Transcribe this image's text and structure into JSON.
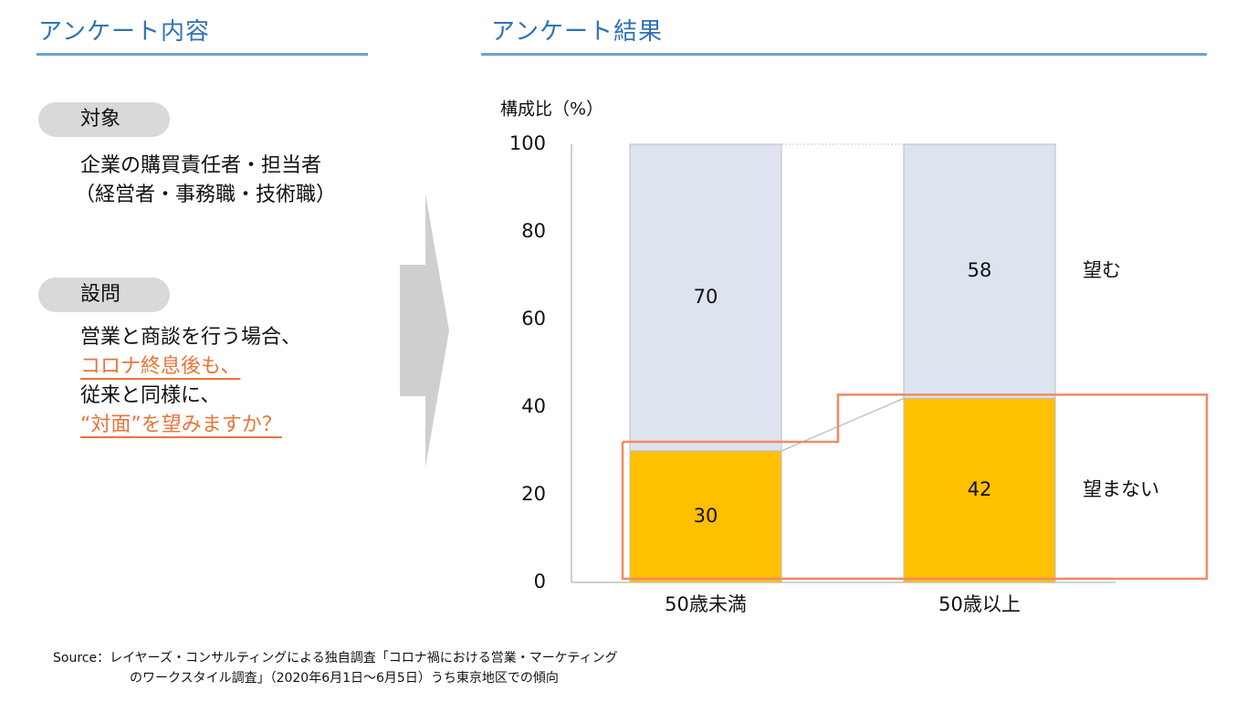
{
  "left_panel": {
    "title": "アンケート内容",
    "subject": {
      "label": "対象",
      "lines": [
        "企業の購買責任者・担当者",
        "（経営者・事務職・技術職）"
      ]
    },
    "question": {
      "label": "設問",
      "line1": "営業と商談を行う場合、",
      "line2": "コロナ終息後も、",
      "line3": "従来と同様に、",
      "line4": "“対面”を望みますか？"
    }
  },
  "right_panel": {
    "title": "アンケート結果"
  },
  "chart_data": {
    "type": "bar",
    "stacked": true,
    "ylabel": "構成比（%）",
    "ylim": [
      0,
      100
    ],
    "yticks": [
      0,
      20,
      40,
      60,
      80,
      100
    ],
    "categories": [
      "50歳未満",
      "50歳以上"
    ],
    "series": [
      {
        "name": "望まない",
        "values": [
          30,
          42
        ],
        "color": "#ffc000"
      },
      {
        "name": "望む",
        "values": [
          70,
          58
        ],
        "color": "#dde4ef"
      }
    ],
    "highlight": "望まない",
    "highlight_color": "#f08a64"
  },
  "source": {
    "line1": "Source：レイヤーズ・コンサルティングによる独自調査「コロナ禍における営業・マーケティング",
    "line2": "のワークスタイル調査」（2020年6月1日～6月5日）うち東京地区での傾向"
  },
  "colors": {
    "title_blue": "#2f72b5",
    "rule_blue": "#6d9fd0",
    "accent_orange": "#e8743b",
    "pill_gray": "#d9d9d9",
    "arrow_gray": "#cfcfcf"
  }
}
